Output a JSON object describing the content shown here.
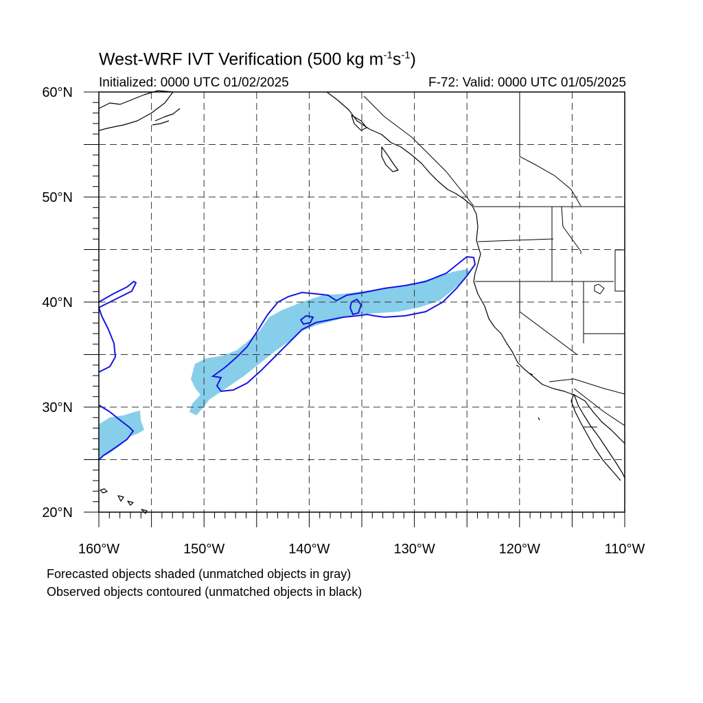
{
  "title": {
    "main": "West-WRF IVT Verification (500 kg m",
    "exp1": "-1",
    "mid": "s",
    "exp2": "-1",
    "end": ")"
  },
  "init_text": "Initialized: 0000 UTC 01/02/2025",
  "valid_text": "F-72: Valid: 0000 UTC 01/05/2025",
  "notes": [
    "Forecasted objects shaded (unmatched objects in gray)",
    "Observed objects contoured (unmatched objects in black)"
  ],
  "map": {
    "lon_range": [
      -160,
      -110
    ],
    "lat_range": [
      20,
      60
    ],
    "lon_ticks": [
      "160°W",
      "150°W",
      "140°W",
      "130°W",
      "120°W",
      "110°W"
    ],
    "lat_ticks": [
      "20°N",
      "30°N",
      "40°N",
      "50°N",
      "60°N"
    ],
    "grid_lon_values": [
      -155,
      -150,
      -145,
      -140,
      -135,
      -130,
      -125,
      -120,
      -115
    ],
    "grid_lat_values": [
      25,
      30,
      35,
      40,
      45,
      50,
      55
    ],
    "colors": {
      "forecast_fill": "#87ceeb",
      "observed_contour": "#1414e6",
      "coastline": "#000000",
      "grid": "#333333"
    }
  }
}
